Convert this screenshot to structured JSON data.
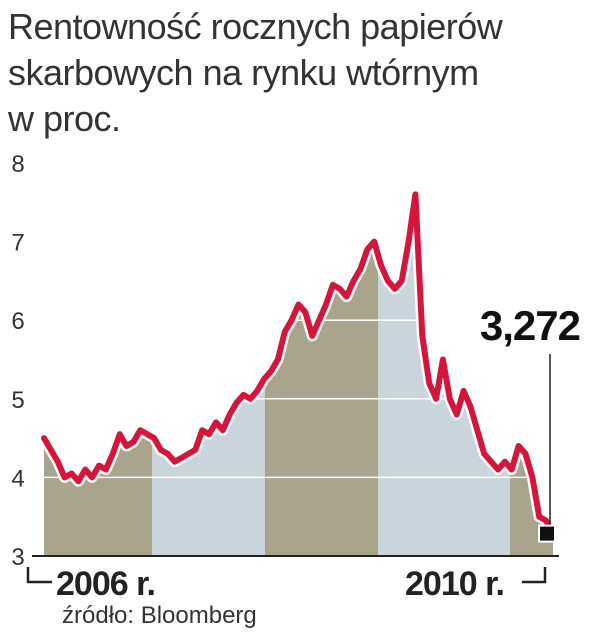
{
  "title_lines": [
    "Rentowność rocznych papierów",
    "skarbowych na rynku wtórnym",
    "w proc."
  ],
  "source": "źródło: Bloomberg",
  "colors": {
    "line": "#d4163c",
    "band_olive": "#a8a58c",
    "band_blue": "#c9d5da",
    "text": "#333333"
  },
  "chart_data": {
    "type": "area",
    "title": "Rentowność rocznych papierów skarbowych na rynku wtórnym w proc.",
    "ylim": [
      3,
      8
    ],
    "yticks": [
      3,
      4,
      5,
      6,
      7,
      8
    ],
    "x_labels": [
      "2006 r.",
      "2010 r."
    ],
    "grid": true,
    "last_value_label": "3,272",
    "series": [
      {
        "values": [
          4.5,
          4.35,
          4.2,
          4.0,
          4.05,
          3.95,
          4.1,
          4.0,
          4.15,
          4.1,
          4.3,
          4.55,
          4.4,
          4.45,
          4.6,
          4.55,
          4.5,
          4.35,
          4.3,
          4.2,
          4.25,
          4.3,
          4.35,
          4.6,
          4.55,
          4.7,
          4.6,
          4.8,
          4.95,
          5.05,
          5.0,
          5.1,
          5.25,
          5.35,
          5.5,
          5.85,
          6.0,
          6.2,
          6.1,
          5.8,
          6.0,
          6.2,
          6.45,
          6.4,
          6.3,
          6.5,
          6.65,
          6.9,
          7.0,
          6.7,
          6.5,
          6.4,
          6.5,
          7.0,
          7.6,
          5.8,
          5.2,
          5.0,
          5.5,
          5.0,
          4.8,
          5.1,
          4.9,
          4.6,
          4.3,
          4.2,
          4.1,
          4.2,
          4.1,
          4.4,
          4.3,
          4.0,
          3.5,
          3.45,
          3.272
        ]
      }
    ]
  }
}
